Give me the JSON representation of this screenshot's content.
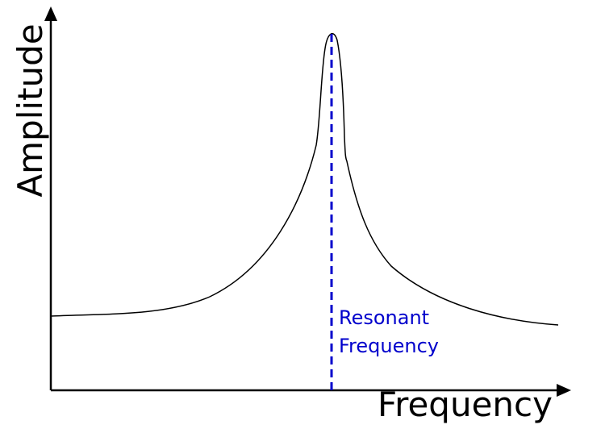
{
  "diagram": {
    "y_axis_label": "Amplitude",
    "x_axis_label": "Frequency",
    "annotation": {
      "line1": "Resonant",
      "line2": "Frequency"
    },
    "colors": {
      "axes": "#000000",
      "curve": "#000000",
      "resonance_line": "#0000cc",
      "annotation_text": "#0000cc"
    }
  }
}
